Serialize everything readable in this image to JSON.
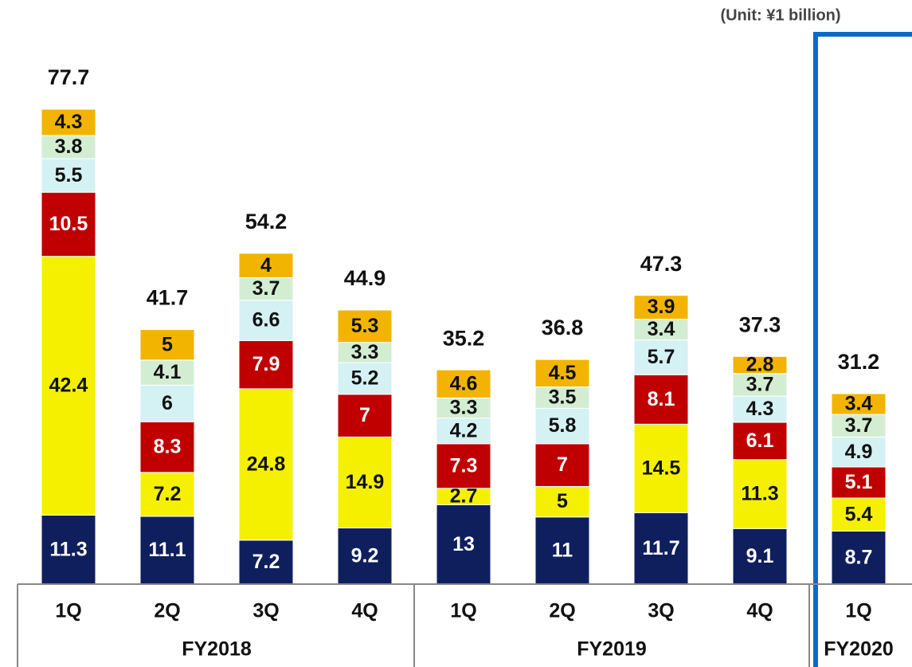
{
  "chart_data": {
    "type": "stacked_bar",
    "subtitle": "(Unit: ¥1 billion)",
    "groups": [
      {
        "name": "FY2018",
        "categories": [
          "1Q",
          "2Q",
          "3Q",
          "4Q"
        ]
      },
      {
        "name": "FY2019",
        "categories": [
          "1Q",
          "2Q",
          "3Q",
          "4Q"
        ]
      },
      {
        "name": "FY2020",
        "categories": [
          "1Q"
        ]
      }
    ],
    "series": [
      {
        "color": "#0f1f5e",
        "label_color": "#ffffff",
        "values": [
          11.3,
          11.1,
          7.2,
          9.2,
          13.0,
          11.0,
          11.7,
          9.1,
          8.7
        ]
      },
      {
        "color": "#f4f000",
        "label_color": "#111111",
        "values": [
          42.4,
          7.2,
          24.8,
          14.9,
          2.7,
          5.0,
          14.5,
          11.3,
          5.4
        ]
      },
      {
        "color": "#c00000",
        "label_color": "#ffffff",
        "values": [
          10.5,
          8.3,
          7.9,
          7.0,
          7.3,
          7.0,
          8.1,
          6.1,
          5.1
        ]
      },
      {
        "color": "#d4f1f4",
        "label_color": "#111111",
        "values": [
          5.5,
          6.0,
          6.6,
          5.2,
          4.2,
          5.8,
          5.7,
          4.3,
          4.9
        ]
      },
      {
        "color": "#d3edd3",
        "label_color": "#111111",
        "values": [
          3.8,
          4.1,
          3.7,
          3.3,
          3.3,
          3.5,
          3.4,
          3.7,
          3.7
        ]
      },
      {
        "color": "#f2b400",
        "label_color": "#111111",
        "values": [
          4.3,
          5.0,
          4.0,
          5.3,
          4.6,
          4.5,
          3.9,
          2.8,
          3.4
        ]
      }
    ],
    "totals": [
      77.7,
      41.7,
      54.2,
      44.9,
      35.2,
      36.8,
      47.3,
      37.3,
      31.2
    ],
    "highlight_group": 2
  }
}
